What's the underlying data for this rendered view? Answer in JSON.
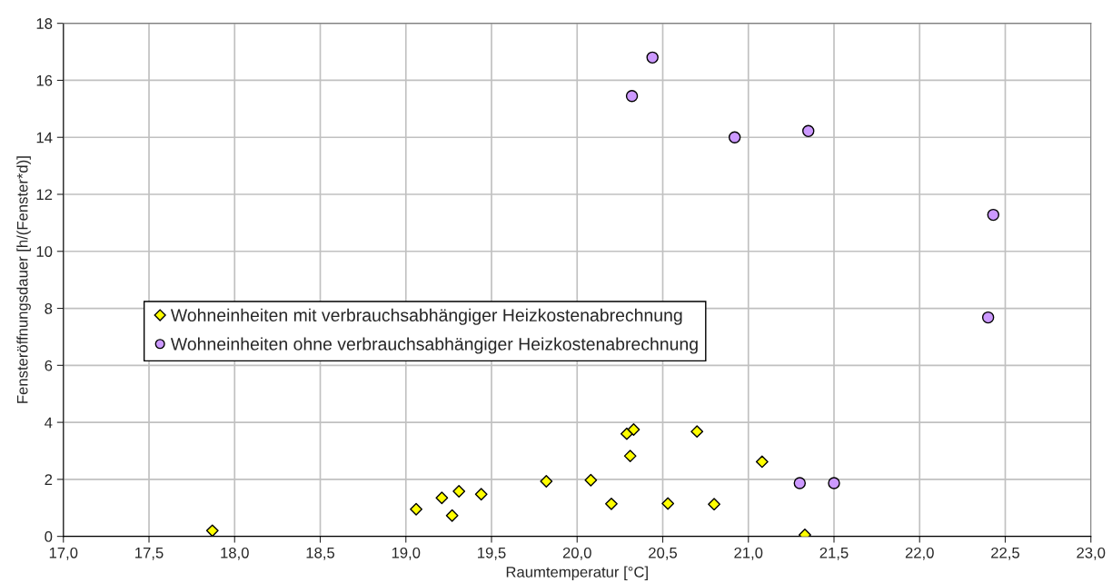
{
  "chart_data": {
    "type": "scatter",
    "xlabel": "Raumtemperatur [°C]",
    "ylabel": "Fensteröffnungsdauer [h/(Fenster*d)]",
    "series": [
      {
        "name": "Wohneinheiten mit verbrauchsabhängiger Heizkostenabrechnung",
        "color": "#ffff00",
        "marker": "diamond",
        "x": [
          17.87,
          19.06,
          19.21,
          19.27,
          19.31,
          19.44,
          19.82,
          20.08,
          20.2,
          20.29,
          20.33,
          20.31,
          20.7,
          20.53,
          20.8,
          21.08,
          21.33
        ],
        "values": [
          0.2,
          0.95,
          1.35,
          0.73,
          1.58,
          1.48,
          1.93,
          1.97,
          1.14,
          3.6,
          3.75,
          2.82,
          3.68,
          1.15,
          1.13,
          2.62,
          0.05
        ]
      },
      {
        "name": "Wohneinheiten ohne verbrauchsabhängiger Heizkostenabrechnung",
        "color": "#cc99ff",
        "marker": "circle",
        "x": [
          20.32,
          20.44,
          20.92,
          21.35,
          22.43,
          22.4,
          21.3,
          21.5
        ],
        "values": [
          15.45,
          16.8,
          14.0,
          14.22,
          11.28,
          7.68,
          1.87,
          1.87
        ]
      }
    ],
    "xlim": [
      17,
      23
    ],
    "xticks": [
      {
        "value": 17,
        "label": "17,0"
      },
      {
        "value": 17.5,
        "label": "17,5"
      },
      {
        "value": 18,
        "label": "18,0"
      },
      {
        "value": 18.5,
        "label": "18,5"
      },
      {
        "value": 19,
        "label": "19,0"
      },
      {
        "value": 19.5,
        "label": "19,5"
      },
      {
        "value": 20,
        "label": "20,0"
      },
      {
        "value": 20.5,
        "label": "20,5"
      },
      {
        "value": 21,
        "label": "21,0"
      },
      {
        "value": 21.5,
        "label": "21,5"
      },
      {
        "value": 22,
        "label": "22,0"
      },
      {
        "value": 22.5,
        "label": "22,5"
      },
      {
        "value": 23,
        "label": "23,0"
      }
    ],
    "ylim": [
      0,
      18
    ],
    "yticks": [
      0,
      2,
      4,
      6,
      8,
      10,
      12,
      14,
      16,
      18
    ],
    "grid": true,
    "legend": "center left"
  }
}
